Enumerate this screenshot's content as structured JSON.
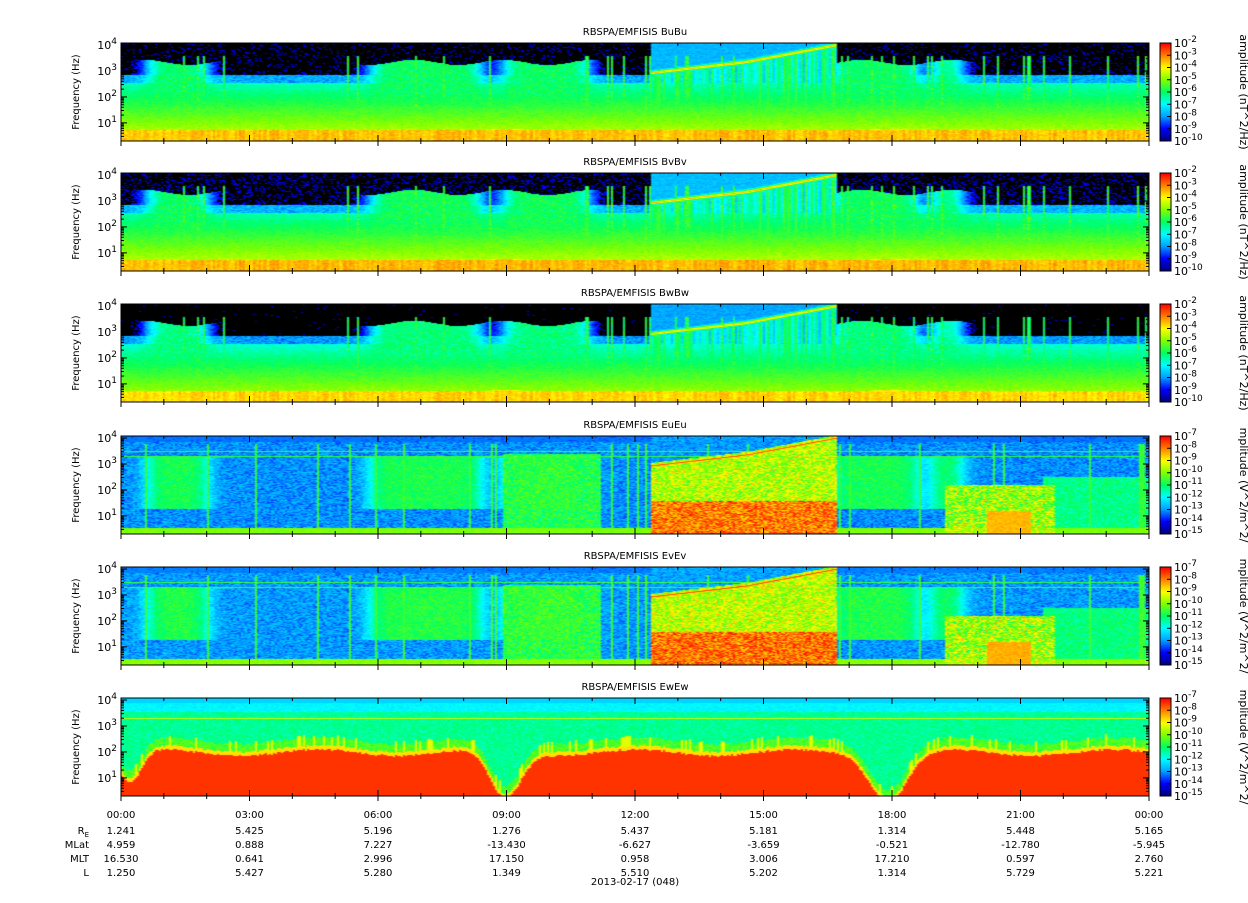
{
  "chart_data": {
    "type": "heatmap",
    "xaxis": {
      "tick_labels": [
        "00:00",
        "03:00",
        "06:00",
        "09:00",
        "12:00",
        "15:00",
        "18:00",
        "21:00",
        "00:00"
      ],
      "title": "2013-02-17 (048)",
      "range_hours": [
        0,
        24
      ]
    },
    "ephemeris": {
      "labels": [
        "R",
        "MLat",
        "MLT",
        "L"
      ],
      "re_subscript": "E",
      "rows": [
        [
          "1.241",
          "5.425",
          "5.196",
          "1.276",
          "5.437",
          "5.181",
          "1.314",
          "5.448",
          "5.165"
        ],
        [
          "4.959",
          "0.888",
          "7.227",
          "-13.430",
          "-6.627",
          "-3.659",
          "-0.521",
          "-12.780",
          "-5.945"
        ],
        [
          "16.530",
          "0.641",
          "2.996",
          "17.150",
          "0.958",
          "3.006",
          "17.210",
          "0.597",
          "2.760"
        ],
        [
          "1.250",
          "5.427",
          "5.280",
          "1.349",
          "5.510",
          "5.202",
          "1.314",
          "5.729",
          "5.221"
        ]
      ]
    },
    "panels": [
      {
        "title": "RBSPA/EMFISIS  BuBu",
        "ylabel": "Frequency (Hz)",
        "yscale": "log",
        "ylim": [
          2,
          12000
        ],
        "yticks": [
          "10",
          "10",
          "10",
          "10"
        ],
        "ytick_exp": [
          "1",
          "2",
          "3",
          "4"
        ],
        "colorbar_label": "amplitude (nT^2/Hz)",
        "cbar_ticks": [
          "10",
          "10",
          "10",
          "10",
          "10",
          "10",
          "10",
          "10",
          "10"
        ],
        "cbar_exp": [
          "-2",
          "-3",
          "-4",
          "-5",
          "-6",
          "-7",
          "-8",
          "-9",
          "-10"
        ],
        "kind": "B"
      },
      {
        "title": "RBSPA/EMFISIS  BvBv",
        "ylabel": "Frequency (Hz)",
        "yscale": "log",
        "ylim": [
          2,
          12000
        ],
        "yticks": [
          "10",
          "10",
          "10",
          "10"
        ],
        "ytick_exp": [
          "1",
          "2",
          "3",
          "4"
        ],
        "colorbar_label": "amplitude (nT^2/Hz)",
        "cbar_ticks": [
          "10",
          "10",
          "10",
          "10",
          "10",
          "10",
          "10",
          "10",
          "10"
        ],
        "cbar_exp": [
          "-2",
          "-3",
          "-4",
          "-5",
          "-6",
          "-7",
          "-8",
          "-9",
          "-10"
        ],
        "kind": "B"
      },
      {
        "title": "RBSPA/EMFISIS  BwBw",
        "ylabel": "Frequency (Hz)",
        "yscale": "log",
        "ylim": [
          2,
          12000
        ],
        "yticks": [
          "10",
          "10",
          "10",
          "10"
        ],
        "ytick_exp": [
          "1",
          "2",
          "3",
          "4"
        ],
        "colorbar_label": "amplitude (nT^2/Hz)",
        "cbar_ticks": [
          "10",
          "10",
          "10",
          "10",
          "10",
          "10",
          "10",
          "10",
          "10"
        ],
        "cbar_exp": [
          "-2",
          "-3",
          "-4",
          "-5",
          "-6",
          "-7",
          "-8",
          "-9",
          "-10"
        ],
        "kind": "B"
      },
      {
        "title": "RBSPA/EMFISIS  EuEu",
        "ylabel": "Frequency (Hz)",
        "yscale": "log",
        "ylim": [
          2,
          12000
        ],
        "yticks": [
          "10",
          "10",
          "10",
          "10"
        ],
        "ytick_exp": [
          "1",
          "2",
          "3",
          "4"
        ],
        "colorbar_label": "mplitude (V^2/m^2/",
        "cbar_ticks": [
          "10",
          "10",
          "10",
          "10",
          "10",
          "10",
          "10",
          "10",
          "10"
        ],
        "cbar_exp": [
          "-7",
          "-8",
          "-9",
          "-10",
          "-11",
          "-12",
          "-13",
          "-14",
          "-15"
        ],
        "kind": "E"
      },
      {
        "title": "RBSPA/EMFISIS  EvEv",
        "ylabel": "Frequency (Hz)",
        "yscale": "log",
        "ylim": [
          2,
          12000
        ],
        "yticks": [
          "10",
          "10",
          "10",
          "10"
        ],
        "ytick_exp": [
          "1",
          "2",
          "3",
          "4"
        ],
        "colorbar_label": "mplitude (V^2/m^2/",
        "cbar_ticks": [
          "10",
          "10",
          "10",
          "10",
          "10",
          "10",
          "10",
          "10",
          "10"
        ],
        "cbar_exp": [
          "-7",
          "-8",
          "-9",
          "-10",
          "-11",
          "-12",
          "-13",
          "-14",
          "-15"
        ],
        "kind": "E"
      },
      {
        "title": "RBSPA/EMFISIS  EwEw",
        "ylabel": "Frequency (Hz)",
        "yscale": "log",
        "ylim": [
          2,
          12000
        ],
        "yticks": [
          "10",
          "10",
          "10",
          "10"
        ],
        "ytick_exp": [
          "1",
          "2",
          "3",
          "4"
        ],
        "colorbar_label": "mplitude (V^2/m^2/",
        "cbar_ticks": [
          "10",
          "10",
          "10",
          "10",
          "10",
          "10",
          "10",
          "10",
          "10"
        ],
        "cbar_exp": [
          "-7",
          "-8",
          "-9",
          "-10",
          "-11",
          "-12",
          "-13",
          "-14",
          "-15"
        ],
        "kind": "Ew"
      }
    ],
    "colormap": [
      "#00007f",
      "#0000ff",
      "#00a0ff",
      "#00ffff",
      "#00ff60",
      "#80ff00",
      "#ffff00",
      "#ff8000",
      "#ff0000"
    ],
    "background_color": "#000000"
  }
}
